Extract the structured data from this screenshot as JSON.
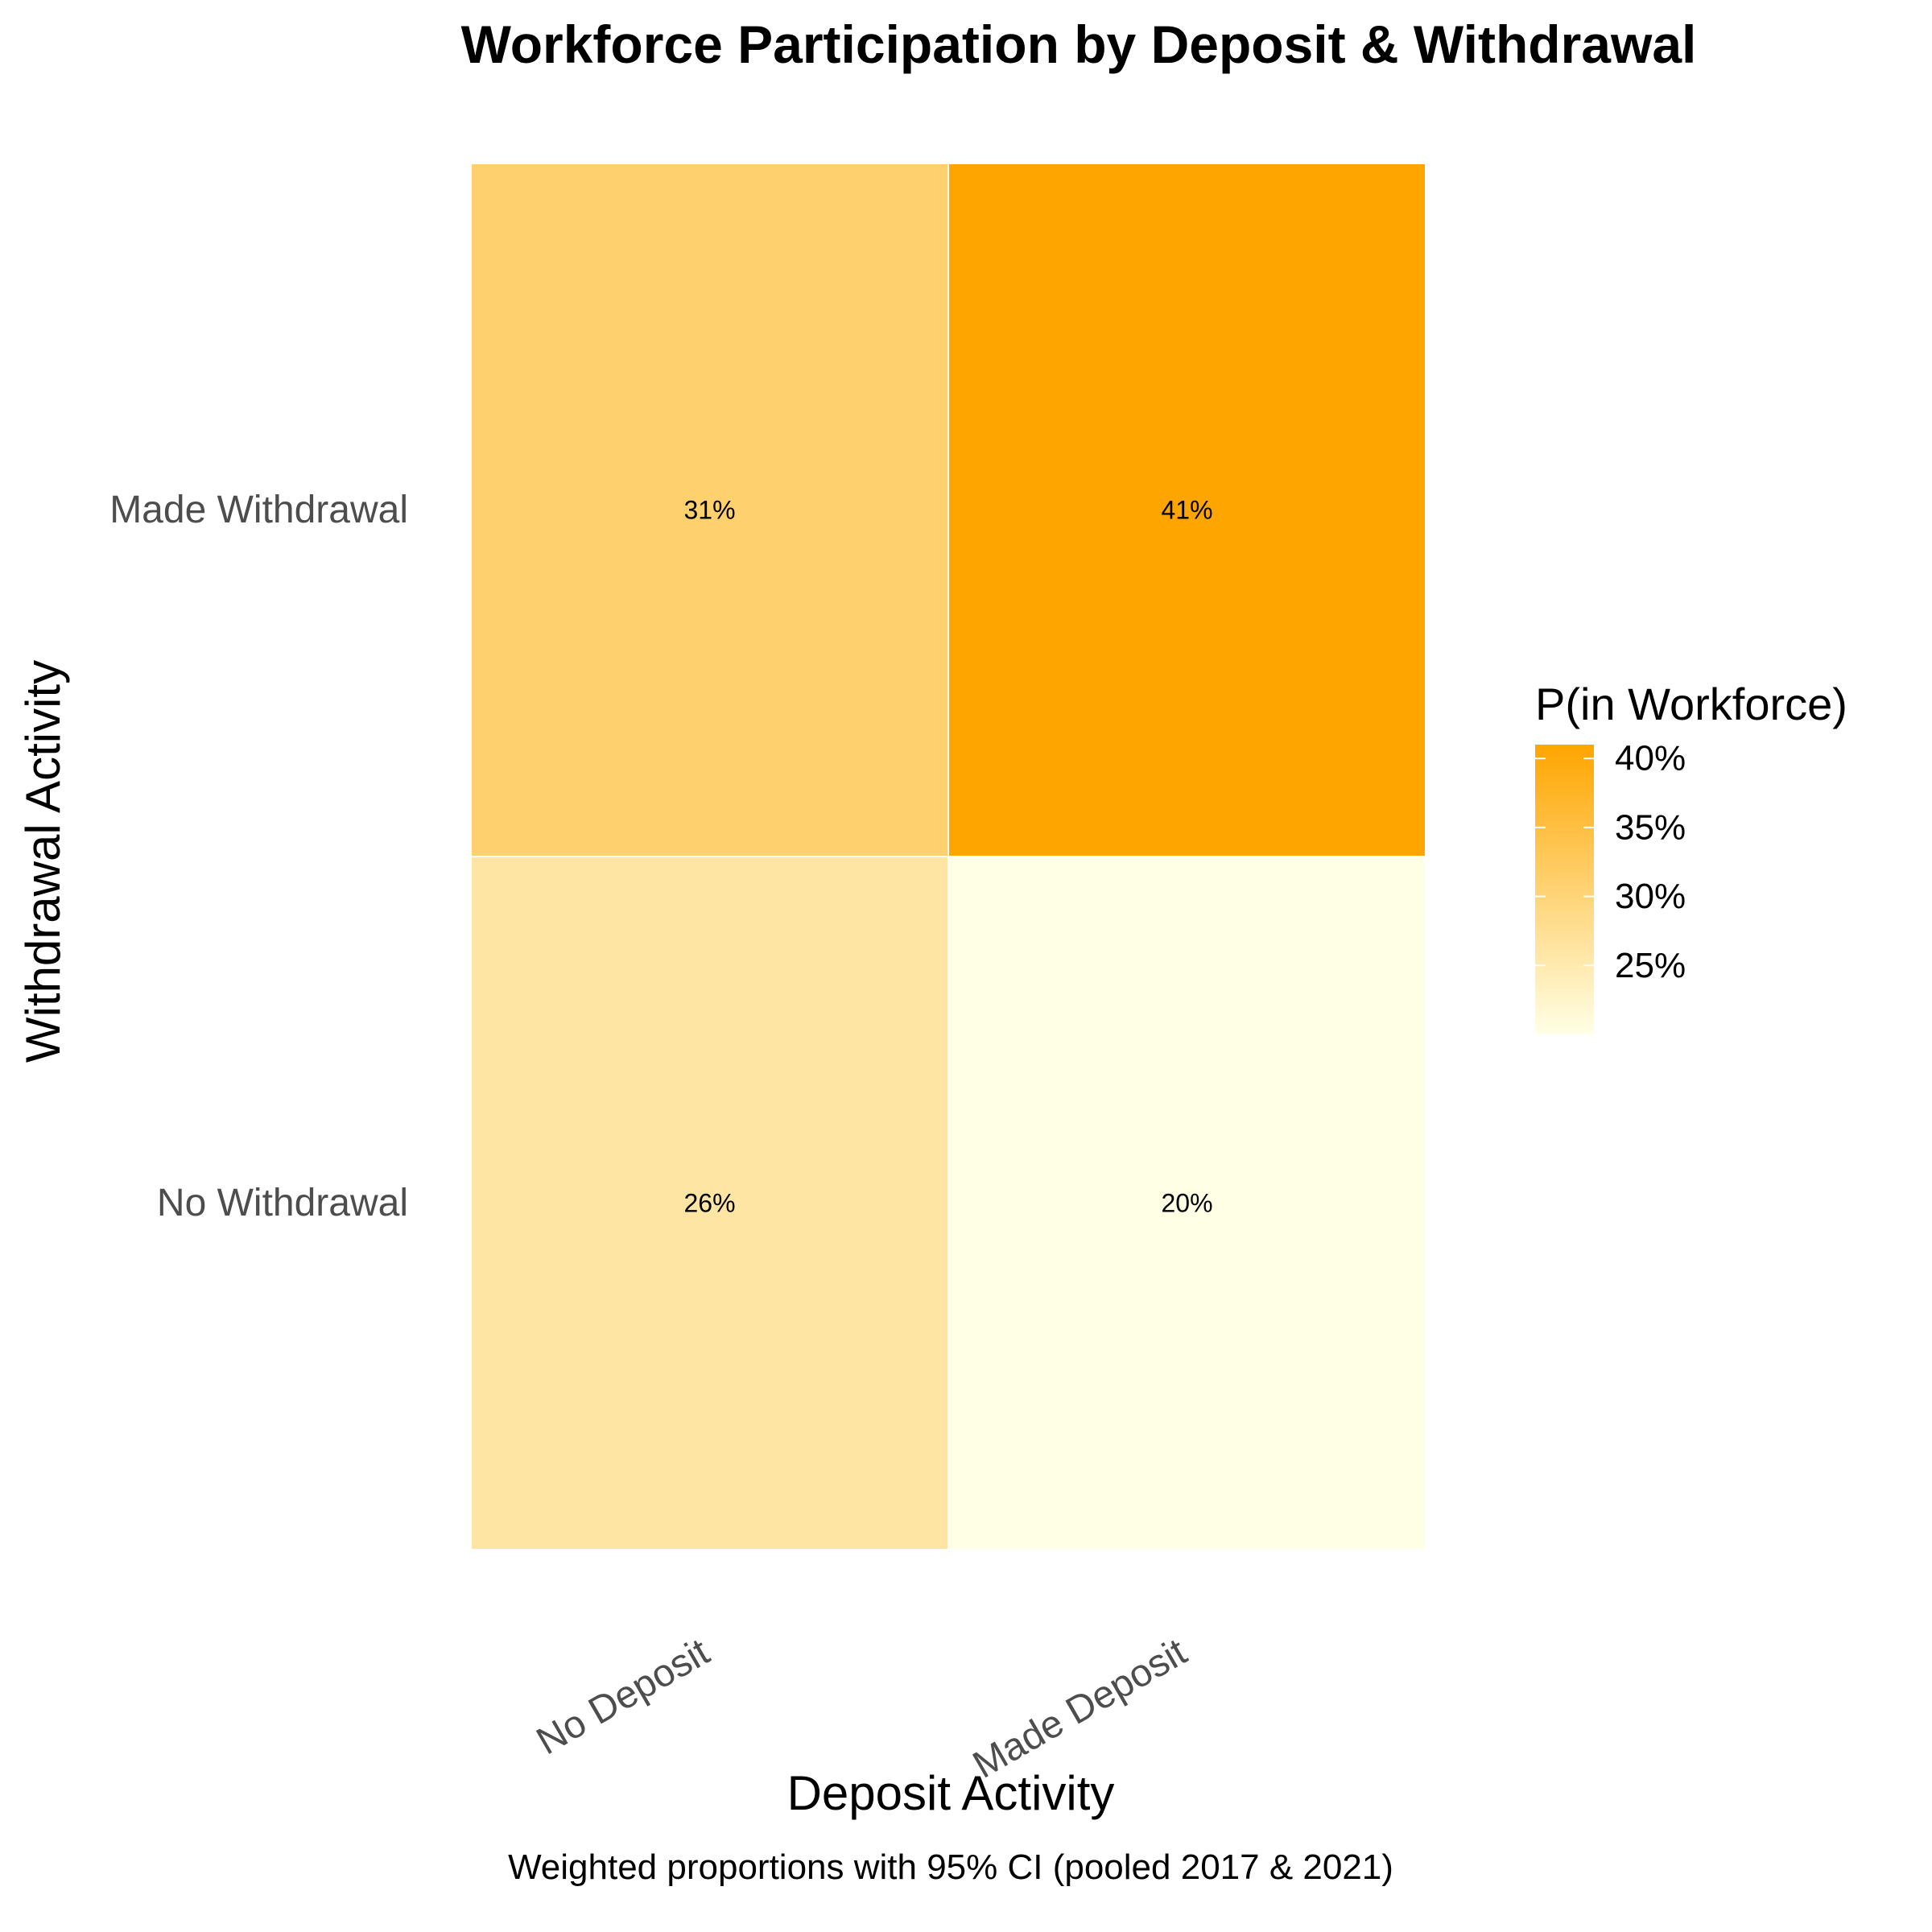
{
  "chart_data": {
    "type": "heatmap",
    "title": "Workforce Participation by Deposit & Withdrawal",
    "xlabel": "Deposit Activity",
    "ylabel": "Withdrawal Activity",
    "caption": "Weighted proportions with 95% CI (pooled 2017 & 2021)",
    "x_categories": [
      "No Deposit",
      "Made Deposit"
    ],
    "y_categories": [
      "Made Withdrawal",
      "No Withdrawal"
    ],
    "cells": [
      {
        "x": "No Deposit",
        "y": "Made Withdrawal",
        "value": 0.31,
        "label": "31%"
      },
      {
        "x": "Made Deposit",
        "y": "Made Withdrawal",
        "value": 0.41,
        "label": "41%"
      },
      {
        "x": "No Deposit",
        "y": "No Withdrawal",
        "value": 0.26,
        "label": "26%"
      },
      {
        "x": "Made Deposit",
        "y": "No Withdrawal",
        "value": 0.2,
        "label": "20%"
      }
    ],
    "legend": {
      "title": "P(in Workforce)",
      "position": "right",
      "range": [
        0.2,
        0.41
      ],
      "ticks": [
        {
          "value": 0.4,
          "label": "40%"
        },
        {
          "value": 0.35,
          "label": "35%"
        },
        {
          "value": 0.3,
          "label": "30%"
        },
        {
          "value": 0.25,
          "label": "25%"
        }
      ],
      "color_low": "#FFFFE6",
      "color_high": "#FFA500"
    },
    "grid": false
  }
}
